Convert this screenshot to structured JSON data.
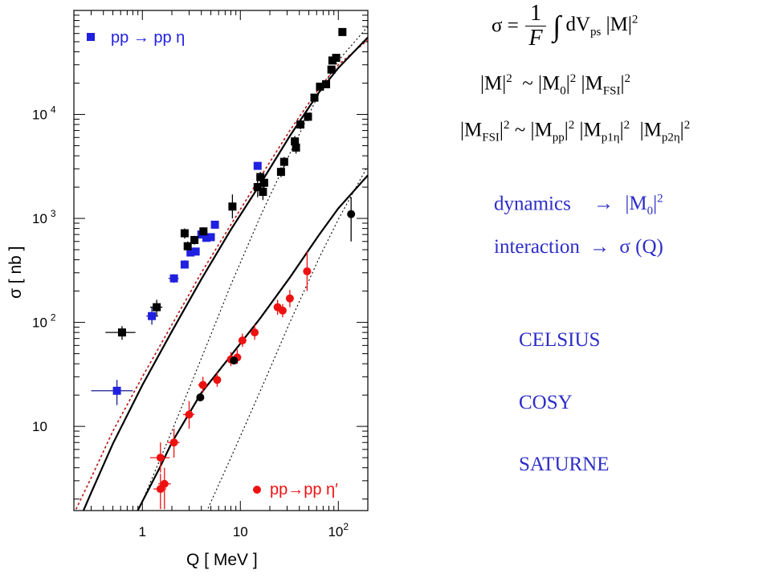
{
  "chart_data": {
    "type": "scatter",
    "x_scale": "log",
    "y_scale": "log",
    "xlim": [
      0.2,
      200
    ],
    "ylim": [
      1.55,
      100000
    ],
    "xlabel": "Q [ MeV ]",
    "ylabel": "σ [ nb ]",
    "x_ticks": [
      {
        "value": 1,
        "label": "1"
      },
      {
        "value": 10,
        "label": "10"
      },
      {
        "value": 100,
        "label": "10",
        "exp": "2"
      }
    ],
    "y_ticks": [
      {
        "value": 10,
        "label": "10",
        "exp": ""
      },
      {
        "value": 100,
        "label": "10",
        "exp": "2"
      },
      {
        "value": 1000,
        "label": "10",
        "exp": "3"
      },
      {
        "value": 10000,
        "label": "10",
        "exp": "4"
      }
    ],
    "legend": [
      {
        "label": "pp → pp η",
        "marker": "square",
        "color": "#2020e0",
        "position": "top-left"
      },
      {
        "label": "pp→pp η′",
        "marker": "circle",
        "color": "#ee1111",
        "position": "bottom-right"
      }
    ],
    "series": [
      {
        "marker": "square",
        "color": "#2020e0",
        "err_color": "#1a1a90",
        "points": [
          {
            "x": 0.55,
            "y": 22,
            "xerr": [
              0.3,
              0.8
            ],
            "yerr": [
              16,
              28
            ]
          },
          {
            "x": 1.25,
            "y": 115,
            "xerr": [
              1.1,
              1.45
            ],
            "yerr": [
              95,
              140
            ]
          },
          {
            "x": 2.1,
            "y": 265,
            "xerr": [
              1.85,
              2.35
            ],
            "yerr": [
              240,
              290
            ]
          },
          {
            "x": 2.7,
            "y": 360,
            "xerr": [
              2.5,
              2.95
            ],
            "yerr": [
              330,
              395
            ]
          },
          {
            "x": 3.1,
            "y": 470,
            "xerr": [
              2.9,
              3.3
            ],
            "yerr": [
              430,
              510
            ]
          },
          {
            "x": 3.5,
            "y": 480,
            "xerr": [
              3.3,
              3.7
            ],
            "yerr": [
              440,
              520
            ]
          },
          {
            "x": 4.0,
            "y": 700,
            "xerr": [
              3.8,
              4.2
            ],
            "yerr": [
              650,
              750
            ]
          },
          {
            "x": 4.5,
            "y": 650,
            "xerr": [
              4.3,
              4.7
            ],
            "yerr": [
              600,
              700
            ]
          },
          {
            "x": 5.0,
            "y": 660,
            "xerr": [
              4.8,
              5.2
            ],
            "yerr": [
              610,
              710
            ]
          },
          {
            "x": 5.5,
            "y": 870,
            "xerr": [
              5.3,
              5.7
            ],
            "yerr": [
              810,
              930
            ]
          },
          {
            "x": 15.0,
            "y": 3200,
            "xerr": [
              14.5,
              15.5
            ],
            "yerr": [
              3000,
              3400
            ]
          }
        ]
      },
      {
        "marker": "square",
        "color": "#000000",
        "err_color": "#000000",
        "points": [
          {
            "x": 0.62,
            "y": 80,
            "xerr": [
              0.42,
              0.85
            ],
            "yerr": [
              68,
              92
            ]
          },
          {
            "x": 1.4,
            "y": 140,
            "xerr": [
              1.2,
              1.6
            ],
            "yerr": [
              115,
              165
            ]
          },
          {
            "x": 2.7,
            "y": 720,
            "xerr": [
              2.5,
              2.9
            ],
            "yerr": [
              640,
              800
            ]
          },
          {
            "x": 2.9,
            "y": 540,
            "xerr": [
              2.7,
              3.1
            ],
            "yerr": [
              480,
              600
            ]
          },
          {
            "x": 3.4,
            "y": 620,
            "xerr": [
              3.2,
              3.6
            ],
            "yerr": [
              560,
              680
            ]
          },
          {
            "x": 4.2,
            "y": 750,
            "xerr": [
              4.0,
              4.4
            ],
            "yerr": [
              680,
              820
            ]
          },
          {
            "x": 8.3,
            "y": 1300,
            "xerr": [
              7.8,
              8.8
            ],
            "yerr": [
              1000,
              1700
            ]
          },
          {
            "x": 15.0,
            "y": 2000,
            "xerr": [
              14.0,
              16.0
            ],
            "yerr": [
              1600,
              2500
            ]
          },
          {
            "x": 16.0,
            "y": 2500,
            "xerr": [
              15.0,
              17.0
            ],
            "yerr": [
              2200,
              2800
            ]
          },
          {
            "x": 17.0,
            "y": 1800,
            "xerr": [
              16.2,
              17.8
            ],
            "yerr": [
              1500,
              2100
            ]
          },
          {
            "x": 17.5,
            "y": 2200,
            "xerr": [
              16.7,
              18.3
            ],
            "yerr": [
              1900,
              2500
            ]
          },
          {
            "x": 26.0,
            "y": 2800,
            "xerr": [
              25.0,
              27.0
            ],
            "yerr": [
              2500,
              3100
            ]
          },
          {
            "x": 28.0,
            "y": 3500,
            "xerr": [
              27.0,
              29.0
            ],
            "yerr": [
              3100,
              3900
            ]
          },
          {
            "x": 36.0,
            "y": 5500,
            "xerr": [
              34.0,
              38.0
            ],
            "yerr": [
              4800,
              6200
            ]
          },
          {
            "x": 37.0,
            "y": 4800,
            "xerr": [
              35.0,
              39.0
            ],
            "yerr": [
              4200,
              5400
            ]
          },
          {
            "x": 41.0,
            "y": 8000,
            "xerr": [
              39.0,
              43.0
            ],
            "yerr": [
              7200,
              8800
            ]
          },
          {
            "x": 49.0,
            "y": 9500,
            "xerr": [
              47.0,
              51.0
            ],
            "yerr": [
              8600,
              10400
            ]
          },
          {
            "x": 57.0,
            "y": 14500,
            "xerr": [
              55.0,
              59.0
            ],
            "yerr": [
              13500,
              15500
            ]
          },
          {
            "x": 65.0,
            "y": 18500,
            "xerr": [
              63.0,
              67.0
            ],
            "yerr": [
              17500,
              19500
            ]
          },
          {
            "x": 75.0,
            "y": 19500,
            "xerr": [
              73.0,
              77.0
            ],
            "yerr": [
              18500,
              20500
            ]
          },
          {
            "x": 85.0,
            "y": 27000,
            "xerr": [
              83.0,
              87.0
            ],
            "yerr": [
              25000,
              29000
            ]
          },
          {
            "x": 87.0,
            "y": 33000,
            "xerr": [
              85.0,
              89.0
            ],
            "yerr": [
              31000,
              35000
            ]
          },
          {
            "x": 95.0,
            "y": 35000,
            "xerr": [
              93.0,
              97.0
            ],
            "yerr": [
              33000,
              37000
            ]
          },
          {
            "x": 110.0,
            "y": 62000,
            "xerr": [
              108.0,
              112.0
            ],
            "yerr": [
              59000,
              65000
            ]
          }
        ]
      },
      {
        "marker": "circle",
        "color": "#ee1111",
        "err_color": "#ee1111",
        "points": [
          {
            "x": 1.53,
            "y": 5.0,
            "xerr": [
              1.2,
              1.9
            ],
            "yerr": [
              3.6,
              7.0
            ]
          },
          {
            "x": 1.53,
            "y": 2.5,
            "xerr": [
              1.3,
              1.75
            ],
            "yerr": [
              1.6,
              3.5
            ]
          },
          {
            "x": 1.68,
            "y": 2.8,
            "xerr": [
              1.45,
              1.95
            ],
            "yerr": [
              1.6,
              4.0
            ]
          },
          {
            "x": 2.1,
            "y": 7.0,
            "xerr": [
              1.8,
              2.4
            ],
            "yerr": [
              5.0,
              9.5
            ]
          },
          {
            "x": 3.0,
            "y": 13.0,
            "xerr": [
              2.6,
              3.4
            ],
            "yerr": [
              9.5,
              17.5
            ]
          },
          {
            "x": 4.15,
            "y": 25.0,
            "xerr": [
              3.7,
              4.6
            ],
            "yerr": [
              21.0,
              30.0
            ]
          },
          {
            "x": 5.8,
            "y": 28.0,
            "xerr": [
              5.3,
              6.3
            ],
            "yerr": [
              24.0,
              33.0
            ]
          },
          {
            "x": 8.0,
            "y": 44.0,
            "xerr": [
              7.4,
              8.6
            ],
            "yerr": [
              38.0,
              52.0
            ]
          },
          {
            "x": 9.3,
            "y": 46.0,
            "xerr": [
              8.7,
              9.9
            ],
            "yerr": [
              40.0,
              55.0
            ]
          },
          {
            "x": 10.5,
            "y": 67.0,
            "xerr": [
              9.9,
              11.1
            ],
            "yerr": [
              58.0,
              78.0
            ]
          },
          {
            "x": 14.0,
            "y": 80.0,
            "xerr": [
              13.0,
              15.0
            ],
            "yerr": [
              68.0,
              95.0
            ]
          },
          {
            "x": 24.0,
            "y": 140.0,
            "xerr": [
              22.0,
              26.0
            ],
            "yerr": [
              118.0,
              165.0
            ]
          },
          {
            "x": 27.0,
            "y": 130.0,
            "xerr": [
              25.0,
              29.0
            ],
            "yerr": [
              112.0,
              150.0
            ]
          },
          {
            "x": 32.0,
            "y": 170.0,
            "xerr": [
              30.0,
              34.0
            ],
            "yerr": [
              140.0,
              205.0
            ]
          },
          {
            "x": 48.0,
            "y": 310.0,
            "xerr": [
              46.0,
              50.0
            ],
            "yerr": [
              200.0,
              480.0
            ]
          }
        ]
      },
      {
        "marker": "circle",
        "color": "#000000",
        "err_color": "#000000",
        "points": [
          {
            "x": 3.9,
            "y": 19.0,
            "xerr": [
              3.7,
              4.1
            ],
            "yerr": [
              17.5,
              20.5
            ]
          },
          {
            "x": 8.6,
            "y": 43.0,
            "xerr": [
              8.2,
              9.0
            ],
            "yerr": [
              40.0,
              46.0
            ]
          },
          {
            "x": 135.0,
            "y": 1100.0,
            "xerr": [
              130.0,
              140.0
            ],
            "yerr": [
              600.0,
              1600.0
            ]
          }
        ]
      }
    ],
    "curves": [
      {
        "color": "#bb1111",
        "dash": "3,3",
        "width": 1.6,
        "points": [
          [
            0.2,
            1.45
          ],
          [
            0.3,
            3.2
          ],
          [
            0.5,
            9
          ],
          [
            1,
            30
          ],
          [
            2,
            95
          ],
          [
            4,
            300
          ],
          [
            8,
            870
          ],
          [
            16,
            2500
          ],
          [
            32,
            7000
          ],
          [
            64,
            18000
          ],
          [
            100,
            30000
          ],
          [
            200,
            52000
          ]
        ]
      },
      {
        "color": "#000000",
        "dash": "",
        "width": 2.2,
        "points": [
          [
            0.2,
            0.95
          ],
          [
            0.3,
            2.3
          ],
          [
            0.5,
            6.8
          ],
          [
            1,
            25
          ],
          [
            2,
            82
          ],
          [
            4,
            260
          ],
          [
            8,
            780
          ],
          [
            16,
            2150
          ],
          [
            32,
            6200
          ],
          [
            64,
            16500
          ],
          [
            100,
            28000
          ],
          [
            200,
            55000
          ]
        ]
      },
      {
        "color": "#000000",
        "dash": "2,3",
        "width": 1.1,
        "points": [
          [
            0.9,
            1.5
          ],
          [
            2,
            9
          ],
          [
            4,
            45
          ],
          [
            8,
            230
          ],
          [
            16,
            1050
          ],
          [
            32,
            4200
          ],
          [
            64,
            16000
          ],
          [
            100,
            33000
          ],
          [
            200,
            70000
          ]
        ]
      },
      {
        "color": "#000000",
        "dash": "",
        "width": 2.2,
        "points": [
          [
            0.88,
            1.5
          ],
          [
            1.5,
            4
          ],
          [
            2,
            7
          ],
          [
            4,
            21
          ],
          [
            8,
            48
          ],
          [
            16,
            110
          ],
          [
            32,
            270
          ],
          [
            64,
            700
          ],
          [
            100,
            1250
          ],
          [
            200,
            2600
          ]
        ]
      },
      {
        "color": "#000000",
        "dash": "2,3",
        "width": 1.1,
        "points": [
          [
            4.5,
            1.5
          ],
          [
            8,
            5
          ],
          [
            16,
            22
          ],
          [
            32,
            100
          ],
          [
            64,
            420
          ],
          [
            100,
            980
          ],
          [
            200,
            3200
          ]
        ]
      }
    ]
  },
  "equations": {
    "sigma_lhs": "σ =",
    "frac_num": "1",
    "frac_den": "F",
    "integral": "∫",
    "dV": "dV",
    "ps": "ps",
    "abs_M": "|M|",
    "sq": "2",
    "line2_lhs": "|M|",
    "tilde": "~",
    "M0": "|M",
    "zero": "0",
    "MFSI": "|M",
    "FSI": "FSI",
    "line3_lhs": "|M",
    "Mpp": "|M",
    "pp": "pp",
    "Mp1": "|M",
    "p1eta": "p1η",
    "Mp2": "|M",
    "p2eta": "p2η",
    "bar": "|"
  },
  "labels": {
    "dynamics": "dynamics",
    "interaction": "interaction",
    "arrow": "→",
    "sigmaQ": "σ (Q)",
    "dyn_M0": "|M",
    "celsius": "CELSIUS",
    "cosy": "COSY",
    "saturne": "SATURNE"
  }
}
